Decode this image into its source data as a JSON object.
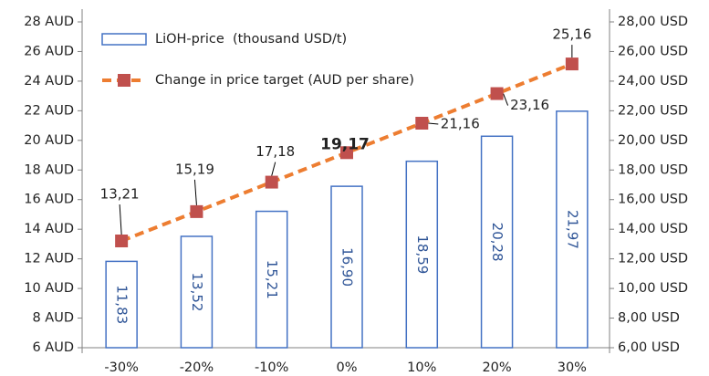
{
  "chart_data": {
    "type": "bar_line",
    "categories": [
      "-30%",
      "-20%",
      "-10%",
      "0%",
      "10%",
      "20%",
      "30%"
    ],
    "series": [
      {
        "name": "LiOH-price  (thousand USD/t)",
        "type": "bar",
        "axis": "y2",
        "color": "#4472c4",
        "values": [
          11.83,
          13.52,
          15.21,
          16.9,
          18.59,
          20.28,
          21.97
        ],
        "value_labels": [
          "11,83",
          "13,52",
          "15,21",
          "16,90",
          "18,59",
          "20,28",
          "21,97"
        ]
      },
      {
        "name": "Change in price target (AUD per share)",
        "type": "line",
        "color": "#ed7d31",
        "marker_color": "#c0504d",
        "values": [
          13.21,
          15.19,
          17.18,
          19.17,
          21.16,
          23.16,
          25.16
        ],
        "value_labels": [
          "13,21",
          "15,19",
          "17,18",
          "19,17",
          "21,16",
          "23,16",
          "25,16"
        ],
        "bold_labels": [
          3
        ]
      }
    ],
    "ylim": [
      6,
      28
    ],
    "yticks": [
      {
        "value": 6,
        "label": "6 AUD"
      },
      {
        "value": 8,
        "label": "8 AUD"
      },
      {
        "value": 10,
        "label": "10 AUD"
      },
      {
        "value": 12,
        "label": "12 AUD"
      },
      {
        "value": 14,
        "label": "14 AUD"
      },
      {
        "value": 16,
        "label": "16 AUD"
      },
      {
        "value": 18,
        "label": "18 AUD"
      },
      {
        "value": 20,
        "label": "20 AUD"
      },
      {
        "value": 22,
        "label": "22 AUD"
      },
      {
        "value": 24,
        "label": "24 AUD"
      },
      {
        "value": 26,
        "label": "26 AUD"
      },
      {
        "value": 28,
        "label": "28 AUD"
      }
    ],
    "y2lim": [
      6,
      28
    ],
    "y2ticks": [
      {
        "value": 6,
        "label": "6,00 USD"
      },
      {
        "value": 8,
        "label": "8,00 USD"
      },
      {
        "value": 10,
        "label": "10,00 USD"
      },
      {
        "value": 12,
        "label": "12,00 USD"
      },
      {
        "value": 14,
        "label": "14,00 USD"
      },
      {
        "value": 16,
        "label": "16,00 USD"
      },
      {
        "value": 18,
        "label": "18,00 USD"
      },
      {
        "value": 20,
        "label": "20,00 USD"
      },
      {
        "value": 22,
        "label": "22,00 USD"
      },
      {
        "value": 24,
        "label": "24,00 USD"
      },
      {
        "value": 26,
        "label": "26,00 USD"
      },
      {
        "value": 28,
        "label": "28,00 USD"
      }
    ],
    "legend": "upper left",
    "grid": false
  }
}
